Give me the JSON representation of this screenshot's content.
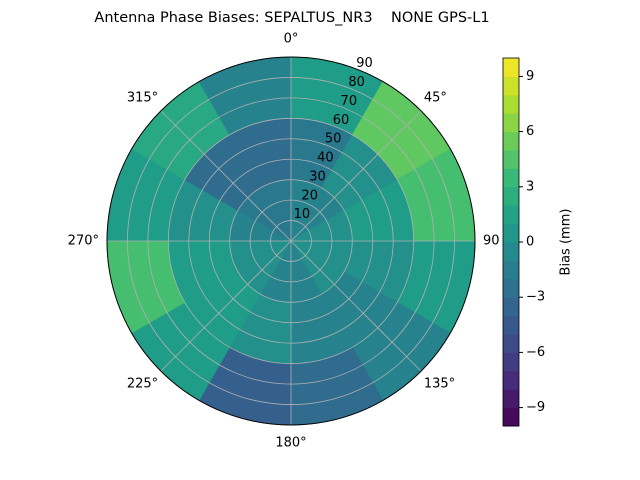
{
  "chart_data": {
    "type": "polar-contour",
    "title": "Antenna Phase Biases: SEPALTUS_NR3    NONE GPS-L1",
    "colormap": "viridis",
    "theta_direction": "clockwise",
    "theta_zero": "north",
    "grid": true,
    "thetaticks": [
      {
        "value": 0,
        "label": "0°"
      },
      {
        "value": 45,
        "label": "45°"
      },
      {
        "value": 90,
        "label": "90"
      },
      {
        "value": 135,
        "label": "135°"
      },
      {
        "value": 180,
        "label": "180°"
      },
      {
        "value": 225,
        "label": "225°"
      },
      {
        "value": 270,
        "label": "270°"
      },
      {
        "value": 315,
        "label": "315°"
      }
    ],
    "rlim": [
      0,
      90
    ],
    "rticks": [
      10,
      20,
      30,
      40,
      50,
      60,
      70,
      80,
      90
    ],
    "azimuth_bins": [
      0,
      30,
      60,
      90,
      120,
      150,
      180,
      210,
      240,
      270,
      300,
      330,
      360
    ],
    "zenith_bins": [
      0,
      30,
      60,
      90
    ],
    "values": [
      [
        -1,
        -1,
        0,
        0,
        0,
        -1,
        -1,
        0,
        0,
        -1,
        -2,
        -2
      ],
      [
        -2,
        0,
        1,
        0,
        -1,
        -1,
        0,
        1,
        1,
        0,
        -3,
        -3
      ],
      [
        1,
        5,
        4,
        1,
        -1,
        -3,
        -4,
        1,
        4,
        1,
        2,
        -1
      ]
    ],
    "colorbar_label": "Bias (mm)",
    "clim": [
      -10,
      10
    ],
    "cticks": [
      {
        "value": -9,
        "label": "−9"
      },
      {
        "value": -6,
        "label": "−6"
      },
      {
        "value": -3,
        "label": "−3"
      },
      0,
      3,
      6,
      9
    ]
  }
}
